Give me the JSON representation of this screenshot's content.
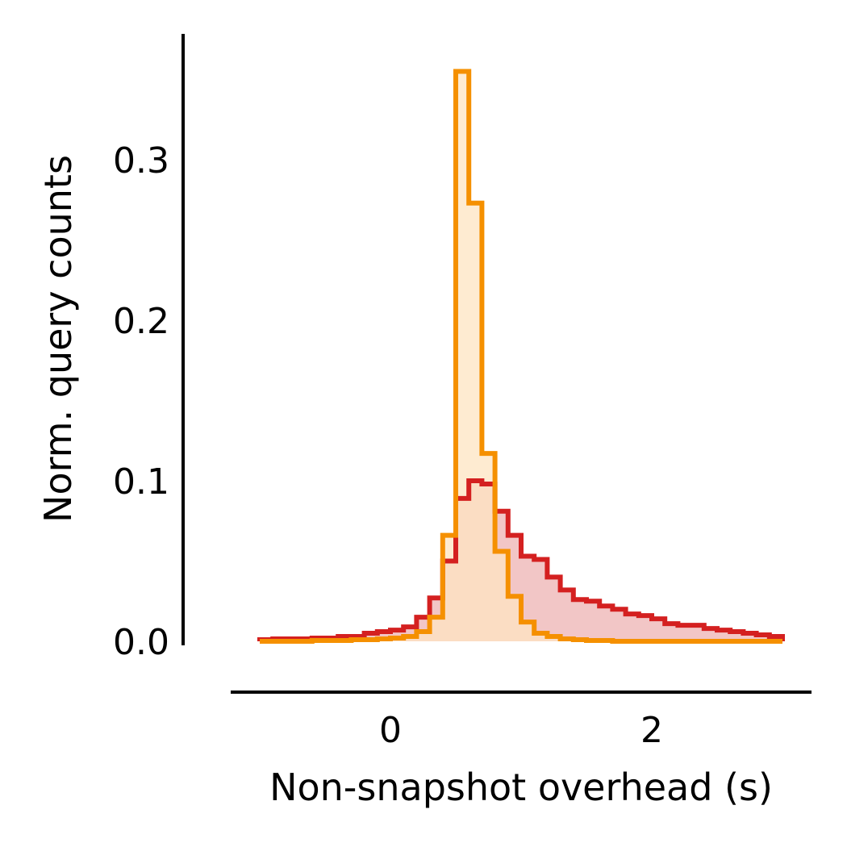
{
  "chart_data": {
    "type": "area",
    "title": "",
    "xlabel": "Non-snapshot overhead (s)",
    "ylabel": "Norm. query counts",
    "xlim": [
      -1.2,
      3.2
    ],
    "ylim": [
      0,
      0.37
    ],
    "x_ticks": [
      0,
      2
    ],
    "x_tick_labels": [
      "0",
      "2"
    ],
    "y_ticks": [
      0.0,
      0.1,
      0.2,
      0.3
    ],
    "y_tick_labels": [
      "0.0",
      "0.1",
      "0.2",
      "0.3"
    ],
    "grid": false,
    "legend": "none",
    "bin_edges": [
      -1.0,
      -0.9,
      -0.8,
      -0.7,
      -0.6,
      -0.5,
      -0.4,
      -0.3,
      -0.2,
      -0.1,
      0.0,
      0.1,
      0.2,
      0.3,
      0.4,
      0.5,
      0.6,
      0.7,
      0.8,
      0.9,
      1.0,
      1.1,
      1.2,
      1.3,
      1.4,
      1.5,
      1.6,
      1.7,
      1.8,
      1.9,
      2.0,
      2.1,
      2.2,
      2.3,
      2.4,
      2.5,
      2.6,
      2.7,
      2.8,
      2.9,
      3.0
    ],
    "series": [
      {
        "color": "#d42020",
        "fill": "#f2c6c6",
        "values": [
          0.001,
          0.0015,
          0.0015,
          0.0015,
          0.002,
          0.002,
          0.003,
          0.003,
          0.005,
          0.006,
          0.007,
          0.009,
          0.015,
          0.027,
          0.05,
          0.089,
          0.1,
          0.098,
          0.081,
          0.066,
          0.053,
          0.051,
          0.04,
          0.032,
          0.026,
          0.025,
          0.022,
          0.02,
          0.017,
          0.016,
          0.014,
          0.011,
          0.01,
          0.01,
          0.008,
          0.007,
          0.006,
          0.005,
          0.004,
          0.003
        ]
      },
      {
        "color": "#f59000",
        "fill": "#fde4c2",
        "values": [
          0.0,
          0.0,
          0.0,
          0.0,
          0.0005,
          0.0005,
          0.0005,
          0.001,
          0.001,
          0.0015,
          0.002,
          0.003,
          0.006,
          0.015,
          0.066,
          0.355,
          0.273,
          0.117,
          0.056,
          0.028,
          0.012,
          0.005,
          0.003,
          0.0015,
          0.001,
          0.0005,
          0.0005,
          0.0,
          0.0,
          0.0,
          0.0,
          0.0,
          0.0,
          0.0,
          0.0,
          0.0,
          0.0,
          0.0,
          0.0,
          0.0
        ]
      }
    ]
  }
}
